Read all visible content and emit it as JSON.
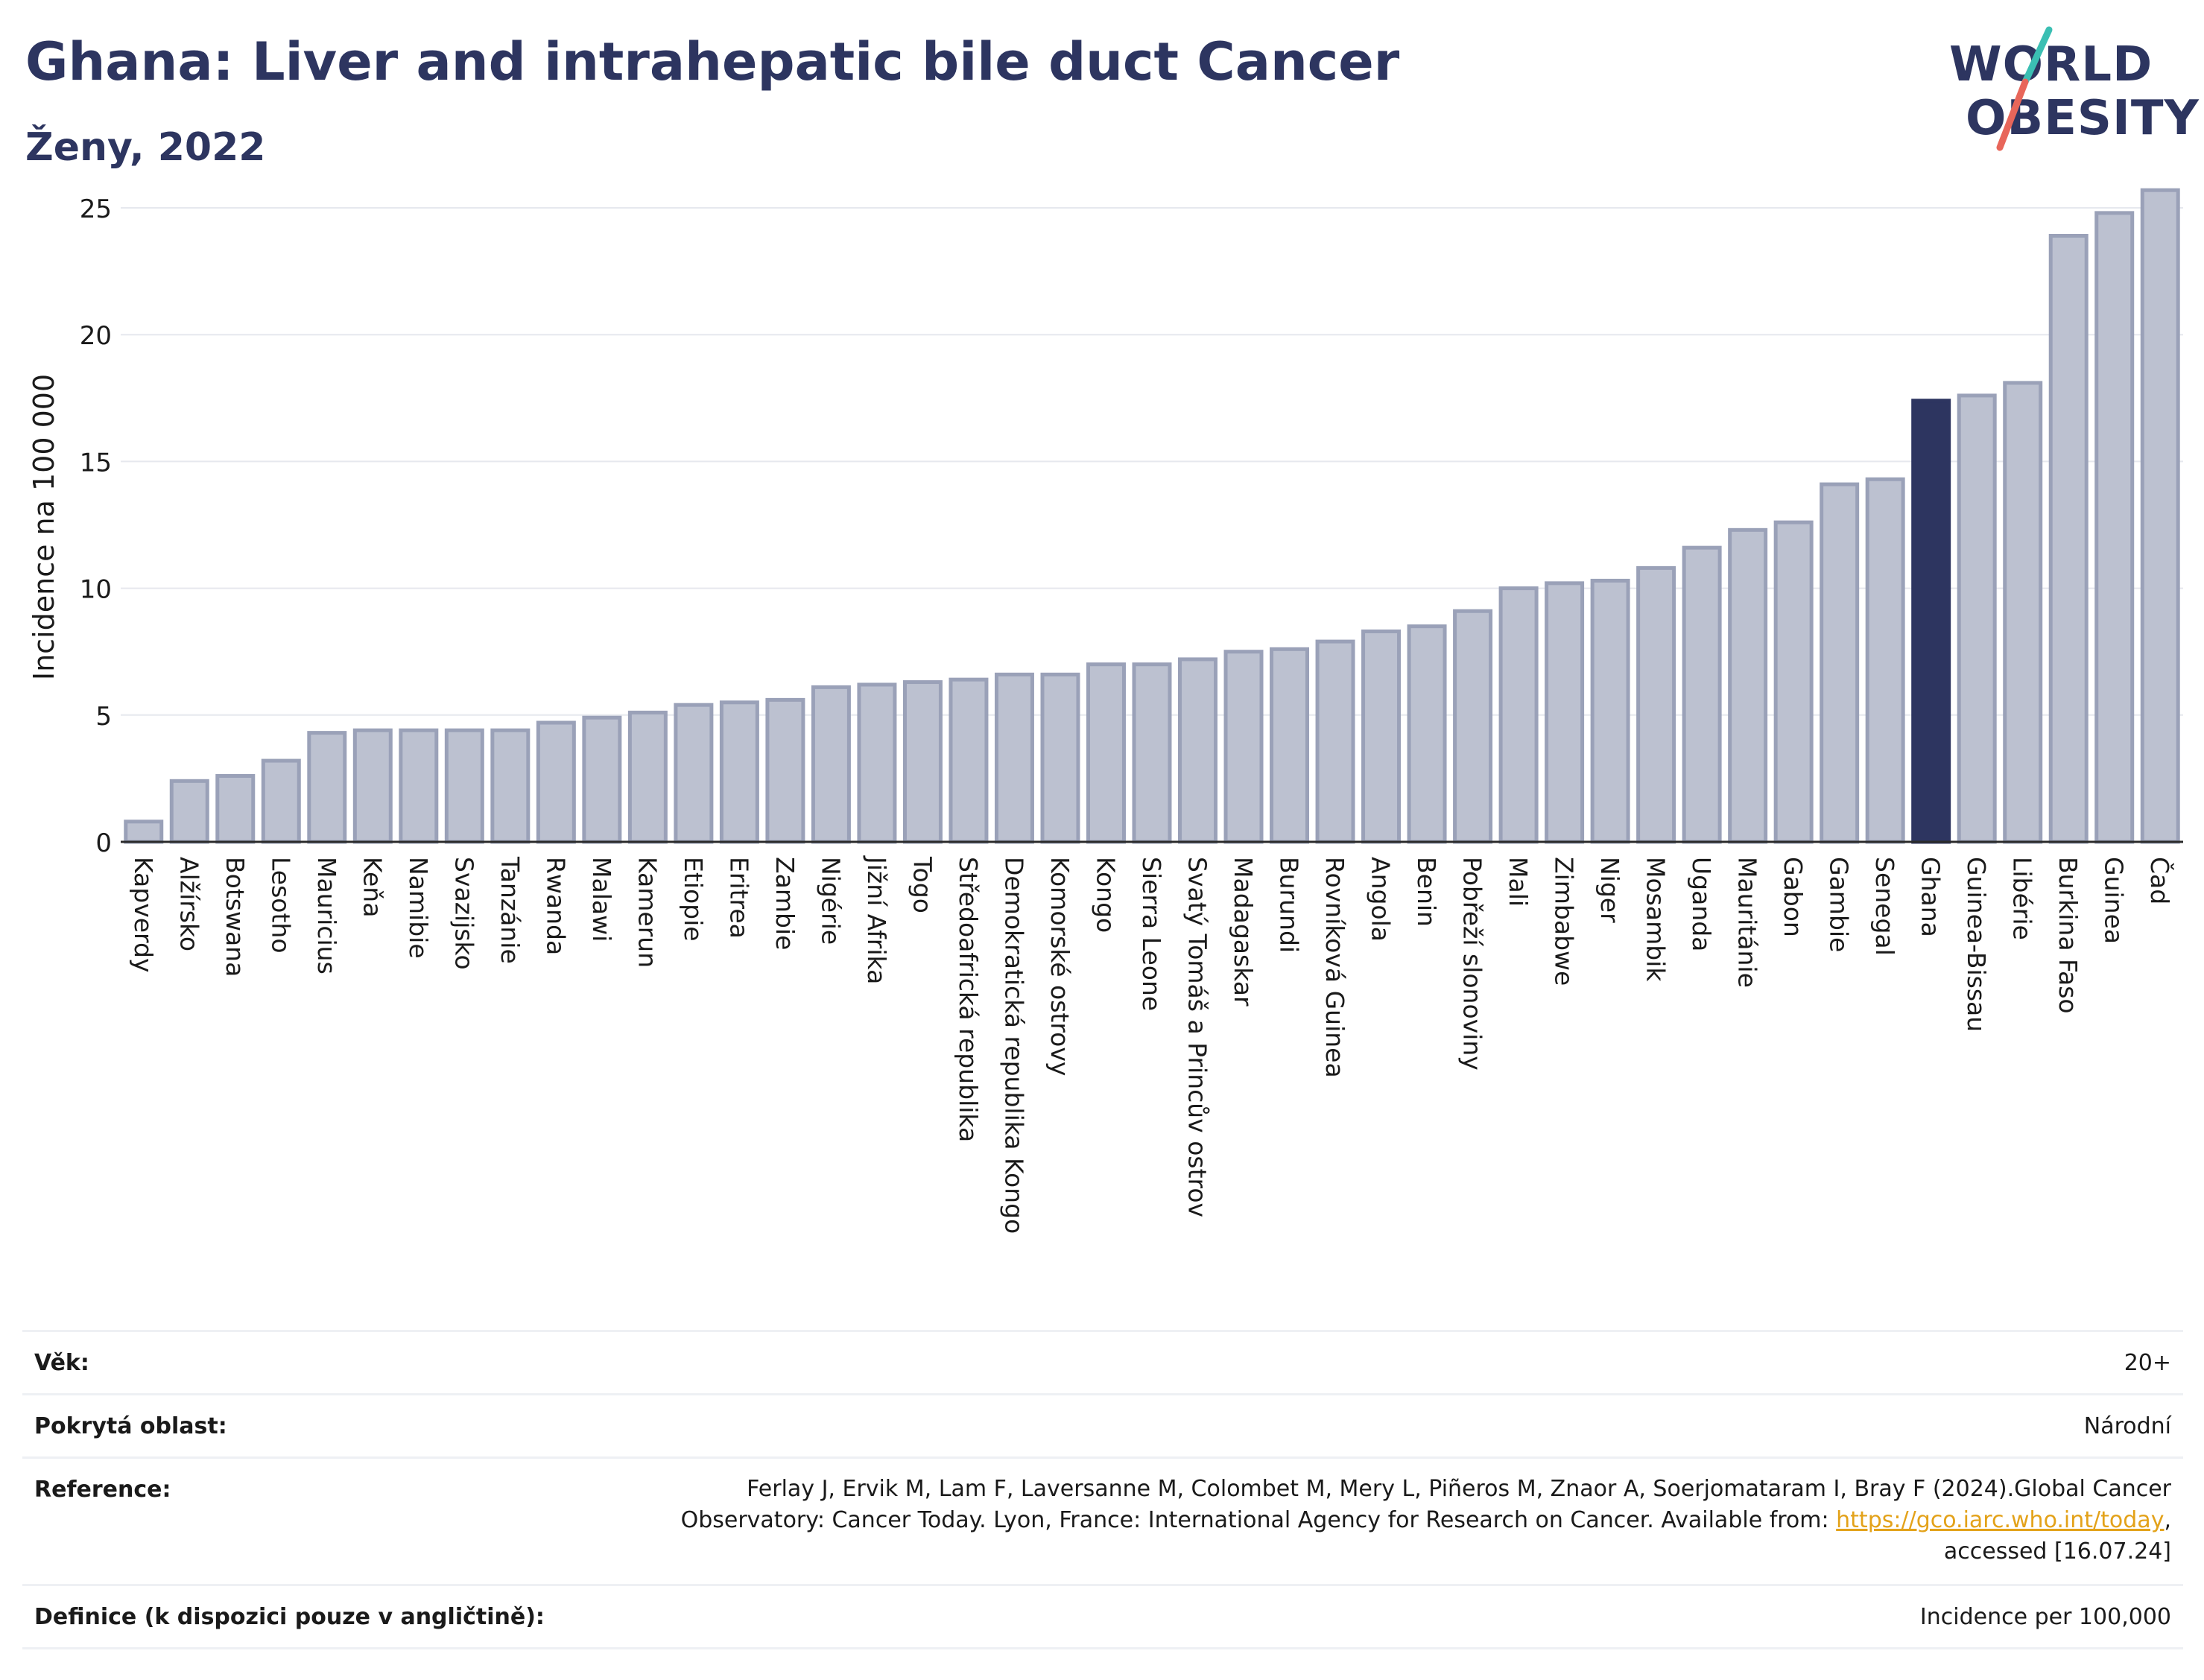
{
  "header": {
    "title": "Ghana: Liver and intrahepatic bile duct Cancer",
    "subtitle": "Ženy, 2022"
  },
  "logo": {
    "line1": "WORLD",
    "line2": "OBESITY",
    "colors": {
      "text": "#2d3560",
      "slash_teal": "#3bbfb3",
      "slash_red": "#e8665a"
    }
  },
  "colors": {
    "bar": "#bcc1d0",
    "bar_border": "#9aa1b8",
    "highlight": "#2d3560",
    "grid": "#e6e8ee"
  },
  "chart_data": {
    "type": "bar",
    "ylabel": "Incidence na 100 000",
    "ylim": [
      0,
      26
    ],
    "yticks": [
      0,
      5,
      10,
      15,
      20,
      25
    ],
    "grid": true,
    "highlight": "Ghana",
    "categories": [
      "Kapverdy",
      "Alžírsko",
      "Botswana",
      "Lesotho",
      "Mauricius",
      "Keňa",
      "Namibie",
      "Svazijsko",
      "Tanzánie",
      "Rwanda",
      "Malawi",
      "Kamerun",
      "Etiopie",
      "Eritrea",
      "Zambie",
      "Nigérie",
      "Jižní Afrika",
      "Togo",
      "Středoafrická republika",
      "Demokratická republika Kongo",
      "Komorské ostrovy",
      "Kongo",
      "Sierra Leone",
      "Svatý Tomáš a Princův ostrov",
      "Madagaskar",
      "Burundi",
      "Rovníková Guinea",
      "Angola",
      "Benin",
      "Pobřeží slonoviny",
      "Mali",
      "Zimbabwe",
      "Niger",
      "Mosambik",
      "Uganda",
      "Mauritánie",
      "Gabon",
      "Gambie",
      "Senegal",
      "Ghana",
      "Guinea-Bissau",
      "Libérie",
      "Burkina Faso",
      "Guinea",
      "Čad"
    ],
    "values": [
      0.8,
      2.4,
      2.6,
      3.2,
      4.3,
      4.4,
      4.4,
      4.4,
      4.4,
      4.7,
      4.9,
      5.1,
      5.4,
      5.5,
      5.6,
      6.1,
      6.2,
      6.3,
      6.4,
      6.6,
      6.6,
      7.0,
      7.0,
      7.2,
      7.5,
      7.6,
      7.9,
      8.3,
      8.5,
      9.1,
      10.0,
      10.2,
      10.3,
      10.8,
      11.6,
      12.3,
      12.6,
      14.1,
      14.3,
      17.4,
      17.6,
      18.1,
      23.9,
      24.8,
      25.7
    ]
  },
  "info": {
    "age_label": "Věk:",
    "age_value": "20+",
    "coverage_label": "Pokrytá oblast:",
    "coverage_value": "Národní",
    "reference_label": "Reference:",
    "reference_line1": "Ferlay J, Ervik M, Lam F, Laversanne M, Colombet M, Mery L, Piñeros M, Znaor A, Soerjomataram I, Bray F (2024).Global Cancer",
    "reference_line2_pre": "Observatory: Cancer Today. Lyon, France: International Agency for Research on Cancer. Available from: ",
    "reference_link": "https://gco.iarc.who.int/today",
    "reference_line2_post": ",",
    "reference_line3": "accessed [16.07.24]",
    "definition_label": "Definice (k dispozici pouze v angličtině):",
    "definition_value": "Incidence per 100,000"
  }
}
